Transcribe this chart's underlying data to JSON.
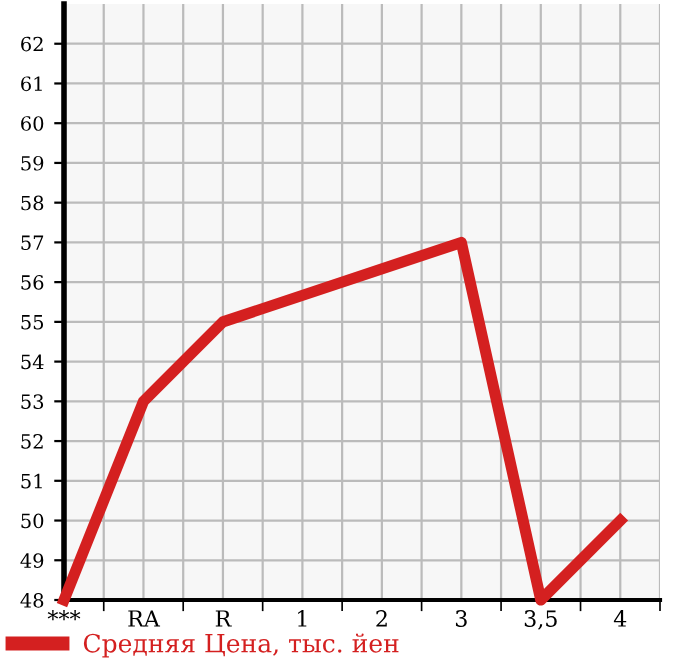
{
  "chart_data": {
    "type": "line",
    "categories": [
      "***",
      "RA",
      "R",
      "1",
      "2",
      "3",
      "3,5",
      "4"
    ],
    "series": [
      {
        "name": "Средняя Цена, тыс. йен",
        "color": "#d42020",
        "values": [
          48,
          53,
          55,
          null,
          null,
          57,
          48,
          50
        ]
      }
    ],
    "ylim": [
      48,
      63
    ],
    "yticks": [
      48,
      49,
      50,
      51,
      52,
      53,
      54,
      55,
      56,
      57,
      58,
      59,
      60,
      61,
      62
    ],
    "grid": true,
    "legend": "bottom",
    "marker": "none",
    "line_style": "solid"
  }
}
